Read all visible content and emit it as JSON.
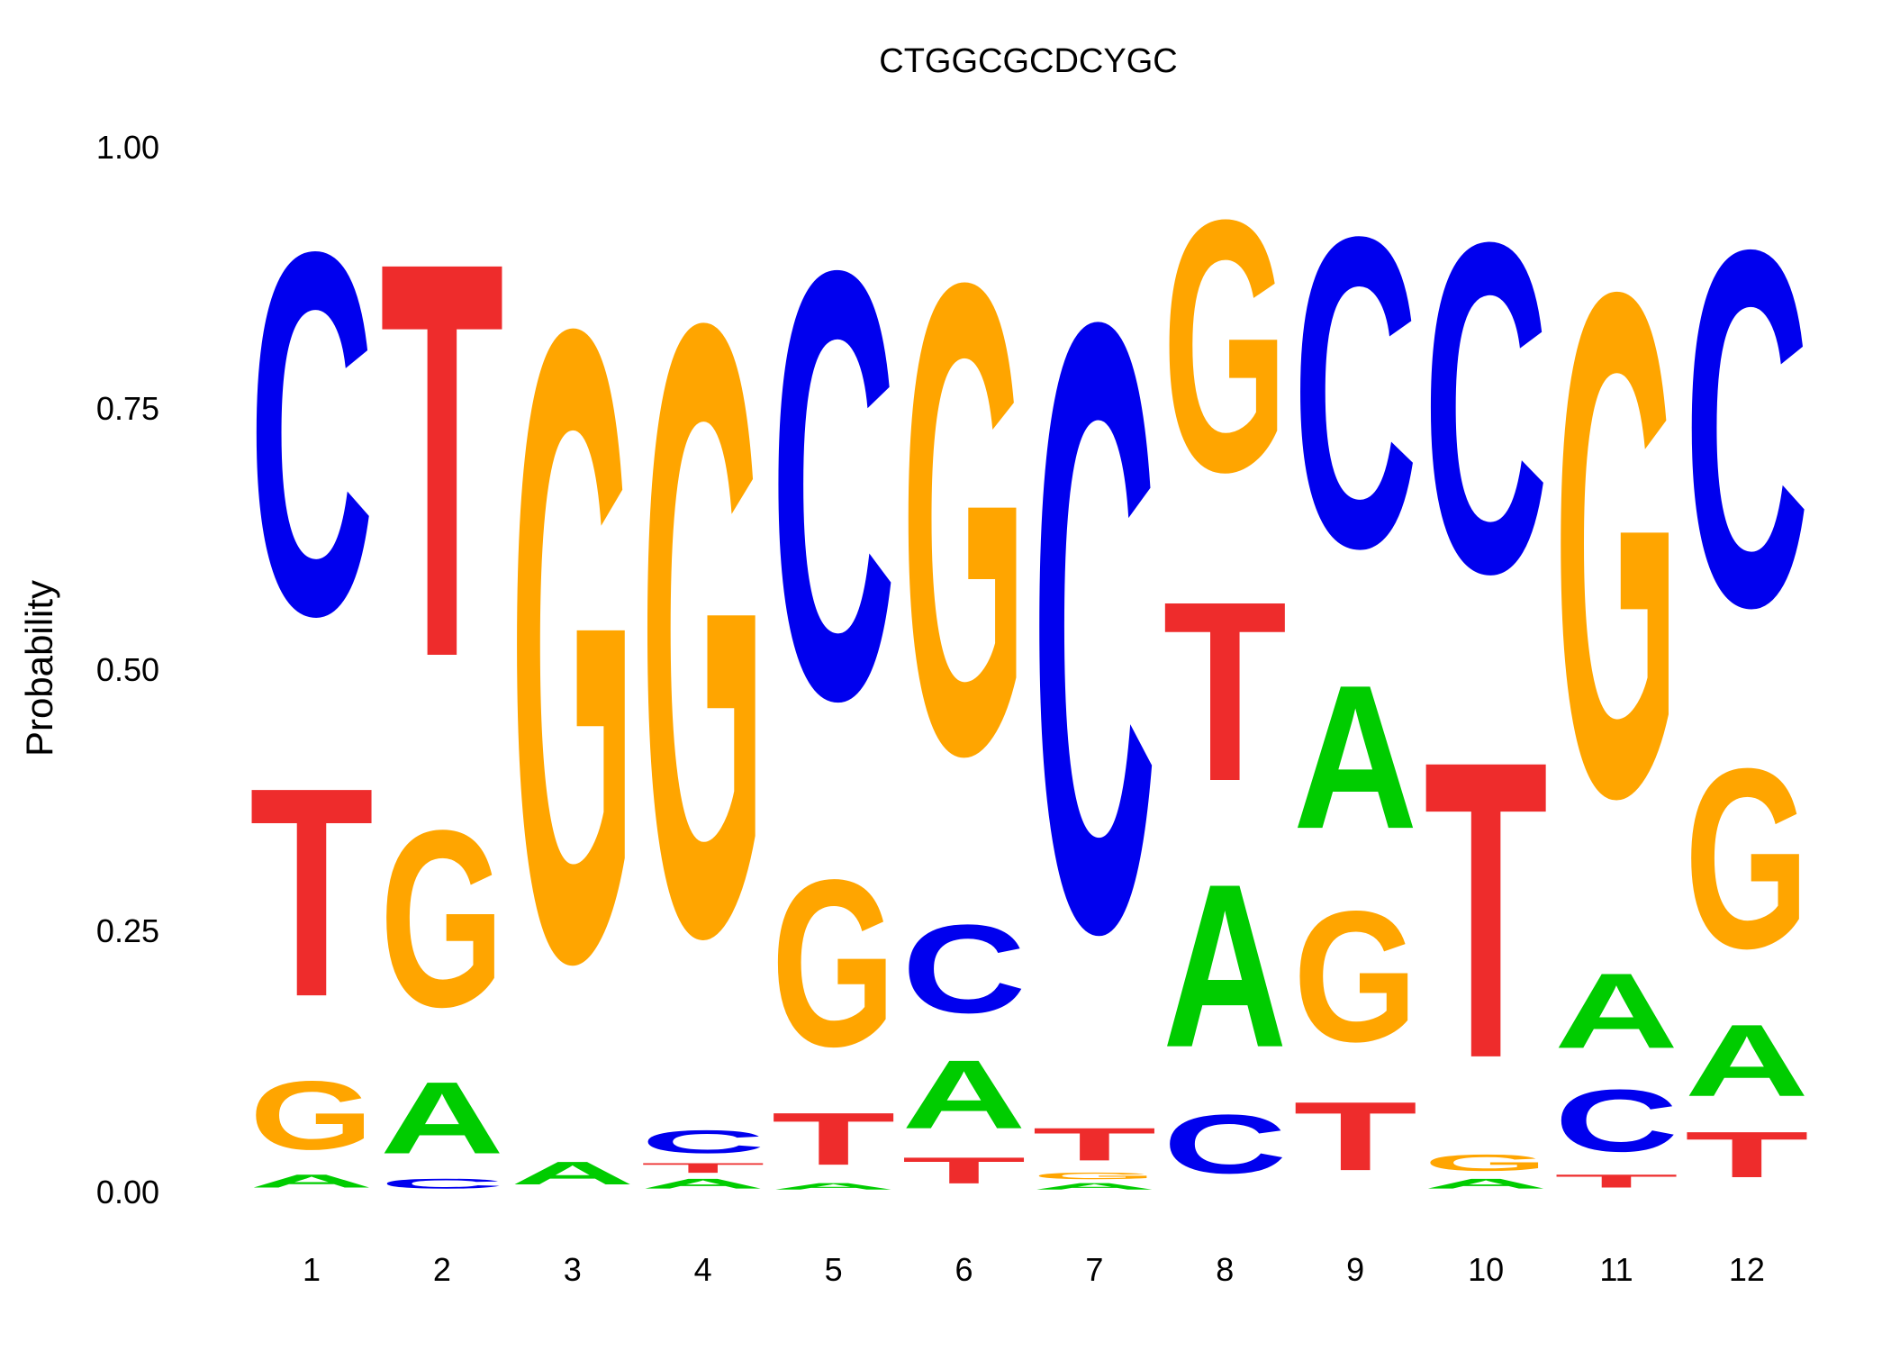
{
  "chart_data": {
    "type": "sequence-logo",
    "title": "CTGGCGCDCYGC",
    "ylabel": "Probability",
    "xlabel": "",
    "ylim": [
      0,
      1
    ],
    "y_ticks": [
      "0.00",
      "0.25",
      "0.50",
      "0.75",
      "1.00"
    ],
    "y_tick_values": [
      0,
      0.25,
      0.5,
      0.75,
      1
    ],
    "grid": false,
    "legend": "none",
    "colors": {
      "A": "#00cc00",
      "C": "#0000ee",
      "G": "#ffa500",
      "T": "#ee2c2c"
    },
    "positions": [
      {
        "label": "1",
        "A": 0.02,
        "C": 0.555,
        "G": 0.105,
        "T": 0.32
      },
      {
        "label": "2",
        "A": 0.11,
        "C": 0.015,
        "G": 0.27,
        "T": 0.605
      },
      {
        "label": "3",
        "A": 0.035,
        "C": 0.0,
        "G": 0.965,
        "T": 0.0
      },
      {
        "label": "4",
        "A": 0.015,
        "C": 0.035,
        "G": 0.935,
        "T": 0.015
      },
      {
        "label": "5",
        "A": 0.01,
        "C": 0.655,
        "G": 0.255,
        "T": 0.08
      },
      {
        "label": "6",
        "A": 0.105,
        "C": 0.135,
        "G": 0.72,
        "T": 0.04
      },
      {
        "label": "7",
        "A": 0.01,
        "C": 0.93,
        "G": 0.01,
        "T": 0.05
      },
      {
        "label": "8",
        "A": 0.25,
        "C": 0.09,
        "G": 0.385,
        "T": 0.275
      },
      {
        "label": "9",
        "A": 0.22,
        "C": 0.475,
        "G": 0.2,
        "T": 0.105
      },
      {
        "label": "10",
        "A": 0.015,
        "C": 0.505,
        "G": 0.025,
        "T": 0.455
      },
      {
        "label": "11",
        "A": 0.115,
        "C": 0.095,
        "G": 0.77,
        "T": 0.02
      },
      {
        "label": "12",
        "A": 0.11,
        "C": 0.545,
        "G": 0.275,
        "T": 0.07
      }
    ]
  }
}
